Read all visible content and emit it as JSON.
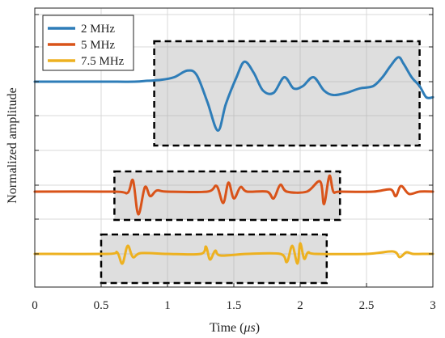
{
  "chart_data": {
    "type": "line",
    "xlabel_prefix": "Time (",
    "xlabel_unit": "μs",
    "xlabel_suffix": ")",
    "ylabel": "Normalized amplitude",
    "xlim": [
      0,
      3
    ],
    "xticks": [
      0,
      0.5,
      1,
      1.5,
      2,
      2.5,
      3
    ],
    "xtick_labels": [
      "0",
      "0.5",
      "1",
      "1.5",
      "2",
      "2.5",
      "3"
    ],
    "grid": true,
    "legend_position": "top-left",
    "series": [
      {
        "name": "2 MHz",
        "color": "#2E7DB8",
        "x": [
          0,
          0.5,
          0.75,
          0.85,
          0.95,
          1.05,
          1.15,
          1.22,
          1.3,
          1.38,
          1.44,
          1.52,
          1.58,
          1.65,
          1.72,
          1.8,
          1.88,
          1.95,
          2.02,
          2.1,
          2.18,
          2.25,
          2.35,
          2.45,
          2.55,
          2.62,
          2.68,
          2.74,
          2.78,
          2.84,
          2.9,
          2.95,
          3.0
        ],
        "y": [
          0,
          0,
          0,
          0.02,
          0.04,
          0.1,
          0.25,
          0.15,
          -0.45,
          -1.1,
          -0.5,
          0.1,
          0.45,
          0.2,
          -0.2,
          -0.25,
          0.1,
          -0.15,
          -0.1,
          0.1,
          -0.2,
          -0.3,
          -0.25,
          -0.15,
          -0.1,
          0.1,
          0.35,
          0.55,
          0.4,
          0.1,
          -0.1,
          -0.35,
          -0.35
        ]
      },
      {
        "name": "5 MHz",
        "color": "#D95319",
        "x": [
          0,
          0.6,
          0.7,
          0.74,
          0.78,
          0.83,
          0.87,
          0.92,
          1.0,
          1.3,
          1.37,
          1.42,
          1.46,
          1.5,
          1.55,
          1.6,
          1.75,
          1.8,
          1.85,
          1.9,
          2.05,
          2.15,
          2.18,
          2.22,
          2.25,
          2.3,
          2.55,
          2.68,
          2.72,
          2.76,
          2.82,
          2.9,
          3.0
        ],
        "y": [
          0,
          0,
          -0.05,
          0.5,
          -1.0,
          0.2,
          -0.2,
          0.05,
          0,
          0,
          0.25,
          -0.5,
          0.4,
          -0.3,
          0.2,
          0,
          0,
          -0.3,
          0.3,
          0,
          0,
          0.45,
          -0.55,
          0.7,
          0,
          0,
          0,
          0.1,
          -0.2,
          0.25,
          -0.1,
          0,
          0
        ]
      },
      {
        "name": "7.5 MHz",
        "color": "#EDB120",
        "x": [
          0,
          0.55,
          0.62,
          0.66,
          0.7,
          0.74,
          0.8,
          1.0,
          1.25,
          1.29,
          1.32,
          1.36,
          1.4,
          1.6,
          1.85,
          1.9,
          1.94,
          1.98,
          2.0,
          2.03,
          2.06,
          2.12,
          2.5,
          2.7,
          2.75,
          2.8,
          2.85,
          2.92,
          3.0
        ],
        "y": [
          0,
          0,
          0.1,
          -0.6,
          0.5,
          -0.2,
          0.05,
          0,
          0,
          0.45,
          -0.35,
          0.2,
          -0.1,
          0,
          0,
          -0.5,
          0.5,
          -0.6,
          0.65,
          -0.3,
          0.1,
          0,
          0,
          0.15,
          -0.2,
          0.1,
          0,
          0,
          0
        ]
      }
    ]
  }
}
